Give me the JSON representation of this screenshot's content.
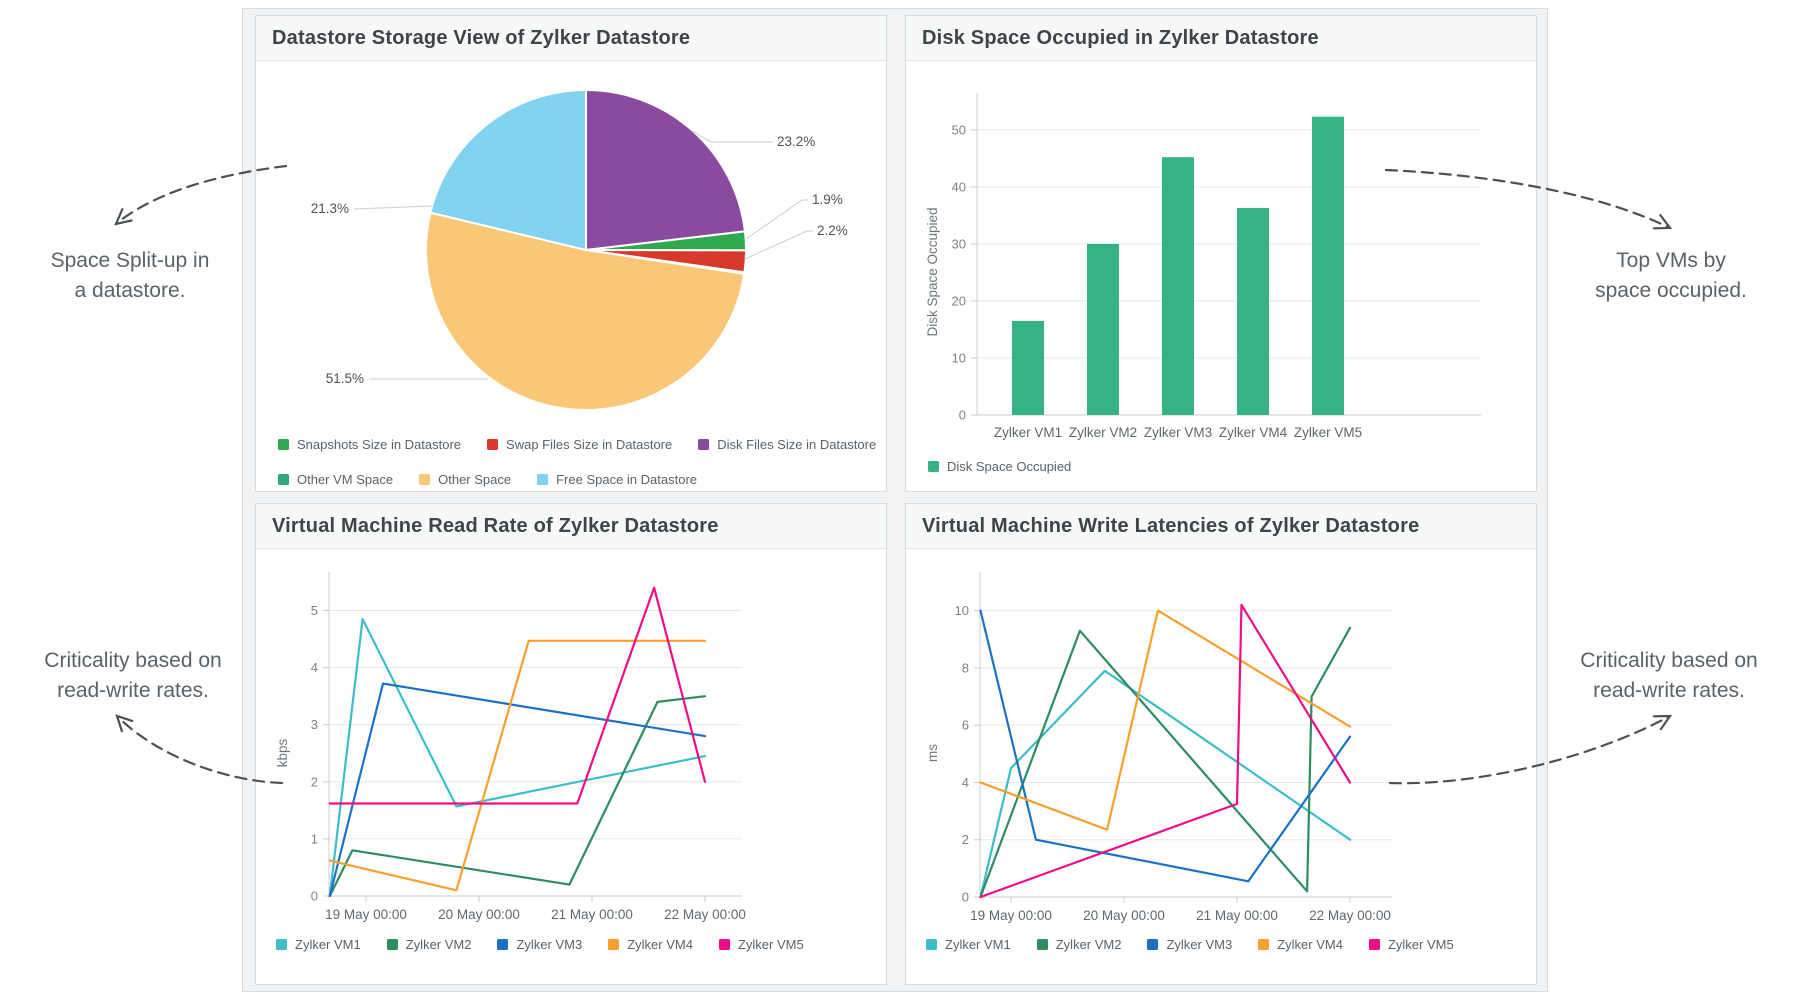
{
  "panels": {
    "pie": {
      "title": "Datastore Storage View of Zylker Datastore"
    },
    "bar": {
      "title": "Disk Space Occupied in Zylker Datastore"
    },
    "read": {
      "title": "Virtual Machine Read Rate of Zylker Datastore"
    },
    "write": {
      "title": "Virtual Machine Write Latencies of Zylker Datastore"
    }
  },
  "annotations": {
    "top_left": {
      "line1": "Space Split-up in",
      "line2": "a datastore."
    },
    "top_right": {
      "line1": "Top VMs by",
      "line2": "space occupied."
    },
    "bottom_left": {
      "line1": "Criticality based on",
      "line2": "read-write rates."
    },
    "bottom_right": {
      "line1": "Criticality based on",
      "line2": "read-write rates."
    }
  },
  "chart_data": [
    {
      "id": "pie",
      "type": "pie",
      "title": "Datastore Storage View of Zylker Datastore",
      "slices": [
        {
          "label": "Disk Files Size in Datastore",
          "value": 23.2,
          "display": "23.2%",
          "color": "#8a4aa0"
        },
        {
          "label": "Snapshots Size in Datastore",
          "value": 1.9,
          "display": "1.9%",
          "color": "#2fa84f"
        },
        {
          "label": "Swap Files Size in Datastore",
          "value": 2.2,
          "display": "2.2%",
          "color": "#d7392a"
        },
        {
          "label": "Other VM Space",
          "value": 0.15,
          "display": "",
          "color": "#2fa87e"
        },
        {
          "label": "Other Space",
          "value": 51.5,
          "display": "51.5%",
          "color": "#f9c877"
        },
        {
          "label": "Free Space in Datastore",
          "value": 21.3,
          "display": "21.3%",
          "color": "#82d2f2"
        }
      ],
      "legend_rows": [
        [
          "Snapshots Size in Datastore",
          "Swap Files Size in Datastore",
          "Disk Files Size in Datastore"
        ],
        [
          "Other VM Space",
          "Other Space",
          "Free Space in Datastore"
        ]
      ]
    },
    {
      "id": "bar",
      "type": "bar",
      "title": "Disk Space Occupied in Zylker Datastore",
      "categories": [
        "Zylker VM1",
        "Zylker VM2",
        "Zylker VM3",
        "Zylker VM4",
        "Zylker VM5"
      ],
      "values": [
        16.5,
        30,
        45.2,
        36.3,
        52.3
      ],
      "ylabel": "Disk Space Occupied",
      "yticks": [
        0,
        10,
        20,
        30,
        40,
        50
      ],
      "ylim": [
        0,
        54
      ],
      "bar_color": "#35b384",
      "legend": [
        {
          "label": "Disk Space Occupied",
          "color": "#35b384"
        }
      ]
    },
    {
      "id": "read",
      "type": "line",
      "title": "Virtual Machine Read Rate of Zylker Datastore",
      "ylabel": "kbps",
      "yticks": [
        0,
        1,
        2,
        3,
        4,
        5
      ],
      "ylim": [
        0,
        5.5
      ],
      "xlim": [
        -0.32,
        3.1
      ],
      "xticks": [
        {
          "x": 0,
          "label": "19 May 00:00"
        },
        {
          "x": 1,
          "label": "20 May 00:00"
        },
        {
          "x": 2,
          "label": "21 May 00:00"
        },
        {
          "x": 3,
          "label": "22 May 00:00"
        }
      ],
      "series": [
        {
          "name": "Zylker VM1",
          "color": "#3dbdc6",
          "points": [
            [
              -0.32,
              0
            ],
            [
              -0.03,
              4.85
            ],
            [
              0.8,
              1.57
            ],
            [
              3,
              2.45
            ]
          ]
        },
        {
          "name": "Zylker VM2",
          "color": "#2e8b62",
          "points": [
            [
              -0.32,
              0
            ],
            [
              -0.12,
              0.8
            ],
            [
              1.8,
              0.2
            ],
            [
              2.58,
              3.4
            ],
            [
              3,
              3.5
            ]
          ]
        },
        {
          "name": "Zylker VM3",
          "color": "#1d71c2",
          "points": [
            [
              -0.32,
              0
            ],
            [
              0.15,
              3.72
            ],
            [
              3,
              2.8
            ]
          ]
        },
        {
          "name": "Zylker VM4",
          "color": "#f6a02d",
          "points": [
            [
              -0.32,
              0.62
            ],
            [
              0.8,
              0.1
            ],
            [
              1.44,
              4.47
            ],
            [
              3,
              4.47
            ]
          ]
        },
        {
          "name": "Zylker VM5",
          "color": "#ed0e87",
          "points": [
            [
              -0.32,
              1.62
            ],
            [
              1.87,
              1.62
            ],
            [
              2.55,
              5.4
            ],
            [
              3,
              2.0
            ]
          ]
        }
      ]
    },
    {
      "id": "write",
      "type": "line",
      "title": "Virtual Machine Write Latencies of Zylker Datastore",
      "ylabel": "ms",
      "yticks": [
        0,
        2,
        4,
        6,
        8,
        10
      ],
      "ylim": [
        0,
        11
      ],
      "xlim": [
        -0.27,
        3.1
      ],
      "xticks": [
        {
          "x": 0,
          "label": "19 May 00:00"
        },
        {
          "x": 1,
          "label": "20 May 00:00"
        },
        {
          "x": 2,
          "label": "21 May 00:00"
        },
        {
          "x": 3,
          "label": "22 May 00:00"
        }
      ],
      "series": [
        {
          "name": "Zylker VM1",
          "color": "#3dbdc6",
          "points": [
            [
              -0.27,
              0
            ],
            [
              0,
              4.5
            ],
            [
              0.83,
              7.9
            ],
            [
              3,
              2.0
            ]
          ]
        },
        {
          "name": "Zylker VM2",
          "color": "#2e8b62",
          "points": [
            [
              -0.27,
              0
            ],
            [
              0.61,
              9.3
            ],
            [
              2.62,
              0.2
            ],
            [
              2.66,
              7.0
            ],
            [
              3,
              9.4
            ]
          ]
        },
        {
          "name": "Zylker VM3",
          "color": "#1d71c2",
          "points": [
            [
              -0.27,
              10
            ],
            [
              0.22,
              2.0
            ],
            [
              2.1,
              0.55
            ],
            [
              3,
              5.6
            ]
          ]
        },
        {
          "name": "Zylker VM4",
          "color": "#f6a02d",
          "points": [
            [
              -0.27,
              4.0
            ],
            [
              0.85,
              2.35
            ],
            [
              1.3,
              10.0
            ],
            [
              3,
              5.95
            ]
          ]
        },
        {
          "name": "Zylker VM5",
          "color": "#ed0e87",
          "points": [
            [
              -0.27,
              0
            ],
            [
              2.0,
              3.25
            ],
            [
              2.04,
              10.2
            ],
            [
              3,
              4.0
            ]
          ]
        }
      ]
    }
  ]
}
